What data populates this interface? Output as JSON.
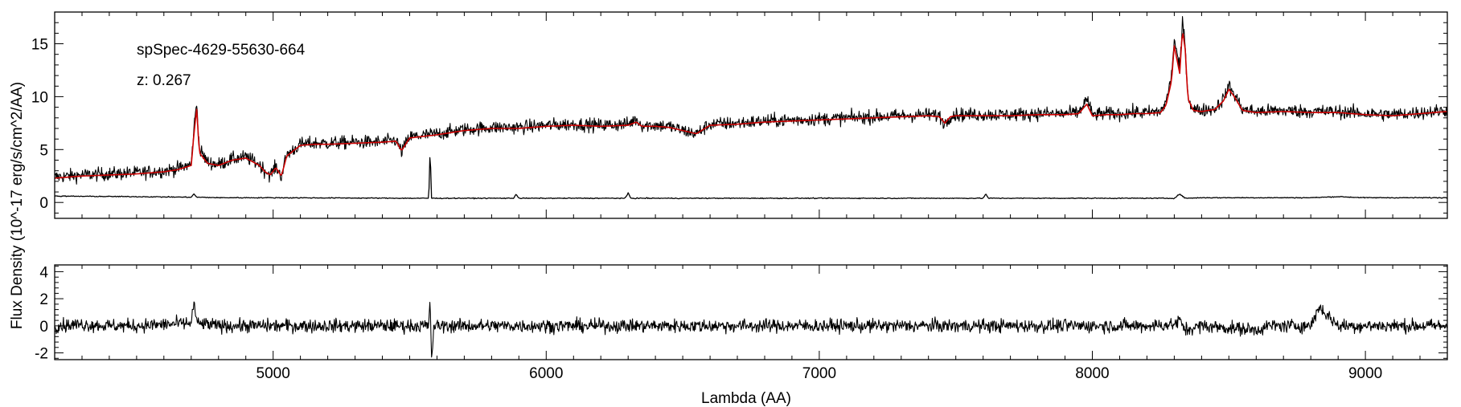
{
  "chart_data": {
    "type": "line",
    "title": "",
    "annotations": [
      "spSpec-4629-55630-664",
      "z: 0.267"
    ],
    "xlabel": "Lambda (AA)",
    "ylabel": "Flux Density (10^-17 erg/s/cm^2/AA)",
    "xlim": [
      4200,
      9300
    ],
    "x_ticks": [
      5000,
      6000,
      7000,
      8000,
      9000
    ],
    "grid": false,
    "legend": "none",
    "colors": {
      "spectrum": "#000000",
      "model": "#cc0000",
      "error": "#000000",
      "residual": "#000000"
    },
    "panels": [
      {
        "name": "spectrum",
        "ylim": [
          -1.5,
          18
        ],
        "y_ticks": [
          0,
          5,
          10,
          15
        ],
        "series": [
          {
            "role": "spectrum",
            "x": [
              4200,
              4300,
              4400,
              4500,
              4600,
              4650,
              4700,
              4710,
              4720,
              4730,
              4760,
              4800,
              4850,
              4900,
              4950,
              4970,
              4990,
              5010,
              5030,
              5050,
              5100,
              5150,
              5200,
              5300,
              5400,
              5450,
              5470,
              5500,
              5600,
              5700,
              5800,
              5900,
              6000,
              6100,
              6200,
              6300,
              6330,
              6350,
              6400,
              6450,
              6500,
              6550,
              6600,
              6700,
              6800,
              6900,
              7000,
              7100,
              7200,
              7300,
              7400,
              7440,
              7460,
              7480,
              7500,
              7600,
              7700,
              7800,
              7900,
              7950,
              7980,
              8000,
              8050,
              8100,
              8150,
              8200,
              8250,
              8270,
              8290,
              8300,
              8310,
              8320,
              8330,
              8340,
              8350,
              8370,
              8400,
              8450,
              8480,
              8500,
              8520,
              8550,
              8600,
              8700,
              8800,
              8900,
              9000,
              9100,
              9200,
              9300
            ],
            "y": [
              2.4,
              2.6,
              2.7,
              2.8,
              3.0,
              3.2,
              3.6,
              7.0,
              9.5,
              5.0,
              3.8,
              3.6,
              4.1,
              4.3,
              3.6,
              3.0,
              2.6,
              3.4,
              2.5,
              4.5,
              5.5,
              5.6,
              5.6,
              5.7,
              5.7,
              5.9,
              4.8,
              6.2,
              6.5,
              6.9,
              7.1,
              7.1,
              7.3,
              7.4,
              7.3,
              7.4,
              7.9,
              7.3,
              7.3,
              7.2,
              6.8,
              6.5,
              7.4,
              7.5,
              7.7,
              7.8,
              7.9,
              8.0,
              8.1,
              8.2,
              8.3,
              8.2,
              7.4,
              8.2,
              8.3,
              8.3,
              8.3,
              8.4,
              8.4,
              8.5,
              9.8,
              8.3,
              8.4,
              8.4,
              8.5,
              8.5,
              8.6,
              9.5,
              12.0,
              15.5,
              14.0,
              12.5,
              17.0,
              15.0,
              10.0,
              8.8,
              8.7,
              8.9,
              9.8,
              11.0,
              10.2,
              8.8,
              8.6,
              8.7,
              8.6,
              8.6,
              8.4,
              8.3,
              8.5,
              8.7
            ]
          },
          {
            "role": "model",
            "x": [
              4200,
              4300,
              4400,
              4500,
              4600,
              4650,
              4700,
              4710,
              4720,
              4730,
              4760,
              4800,
              4850,
              4900,
              4950,
              4970,
              4990,
              5010,
              5030,
              5050,
              5100,
              5150,
              5200,
              5300,
              5400,
              5450,
              5470,
              5500,
              5600,
              5700,
              5800,
              5900,
              6000,
              6100,
              6200,
              6300,
              6330,
              6350,
              6400,
              6450,
              6500,
              6550,
              6600,
              6700,
              6800,
              6900,
              7000,
              7100,
              7200,
              7300,
              7400,
              7440,
              7460,
              7480,
              7500,
              7600,
              7700,
              7800,
              7900,
              7950,
              7980,
              8000,
              8050,
              8100,
              8150,
              8200,
              8250,
              8270,
              8290,
              8300,
              8310,
              8320,
              8330,
              8340,
              8350,
              8370,
              8400,
              8450,
              8480,
              8500,
              8520,
              8550,
              8600,
              8700,
              8800,
              8900,
              9000,
              9100,
              9200,
              9300
            ],
            "y": [
              2.3,
              2.5,
              2.6,
              2.7,
              2.9,
              3.1,
              3.5,
              6.5,
              8.8,
              4.7,
              3.7,
              3.5,
              4.0,
              4.2,
              3.5,
              2.9,
              2.6,
              3.3,
              2.5,
              4.4,
              5.4,
              5.5,
              5.5,
              5.6,
              5.7,
              5.8,
              4.9,
              6.1,
              6.4,
              6.8,
              7.0,
              7.0,
              7.2,
              7.3,
              7.2,
              7.3,
              7.6,
              7.2,
              7.2,
              7.1,
              6.8,
              6.5,
              7.3,
              7.4,
              7.6,
              7.7,
              7.8,
              7.9,
              8.0,
              8.1,
              8.2,
              8.1,
              7.5,
              8.1,
              8.2,
              8.2,
              8.2,
              8.3,
              8.3,
              8.4,
              9.3,
              8.2,
              8.3,
              8.3,
              8.4,
              8.4,
              8.5,
              9.2,
              11.5,
              14.8,
              13.5,
              12.2,
              16.3,
              14.5,
              9.8,
              8.7,
              8.6,
              8.8,
              9.6,
              10.7,
              10.0,
              8.7,
              8.5,
              8.6,
              8.5,
              8.5,
              8.3,
              8.2,
              8.4,
              8.6
            ]
          },
          {
            "role": "error",
            "x": [
              4200,
              4500,
              4700,
              4710,
              4720,
              4800,
              5000,
              5500,
              5570,
              5575,
              5580,
              5590,
              5600,
              5880,
              5890,
              5900,
              6290,
              6300,
              6310,
              7000,
              7600,
              7610,
              7620,
              8000,
              8300,
              8320,
              8340,
              8400,
              8800,
              8900,
              9000,
              9300
            ],
            "y": [
              0.6,
              0.55,
              0.5,
              0.8,
              0.5,
              0.45,
              0.45,
              0.4,
              0.4,
              5.2,
              0.4,
              0.4,
              0.4,
              0.4,
              0.8,
              0.4,
              0.4,
              0.9,
              0.4,
              0.4,
              0.4,
              0.8,
              0.4,
              0.4,
              0.4,
              0.8,
              0.4,
              0.45,
              0.45,
              0.55,
              0.45,
              0.45
            ]
          }
        ]
      },
      {
        "name": "residual",
        "ylim": [
          -2.5,
          4.5
        ],
        "y_ticks": [
          -2,
          0,
          2,
          4
        ],
        "series": [
          {
            "role": "residual",
            "noise_sigma": 0.35,
            "x": [
              4200,
              4300,
              4400,
              4500,
              4600,
              4700,
              4710,
              4720,
              4800,
              5000,
              5500,
              5570,
              5575,
              5580,
              5590,
              5600,
              6000,
              6300,
              6500,
              7000,
              7500,
              8000,
              8200,
              8300,
              8320,
              8340,
              8400,
              8600,
              8650,
              8700,
              8800,
              8830,
              8900,
              9000,
              9300
            ],
            "y": [
              0.0,
              0.1,
              0.0,
              0.0,
              0.1,
              0.2,
              1.8,
              0.2,
              0.0,
              0.0,
              0.0,
              0.0,
              2.0,
              -2.4,
              0.0,
              0.0,
              0.0,
              0.0,
              0.0,
              0.0,
              0.0,
              0.0,
              0.0,
              0.1,
              0.4,
              -0.3,
              0.0,
              -0.3,
              0.0,
              0.0,
              0.0,
              1.4,
              0.0,
              0.0,
              0.0
            ]
          }
        ]
      }
    ]
  }
}
